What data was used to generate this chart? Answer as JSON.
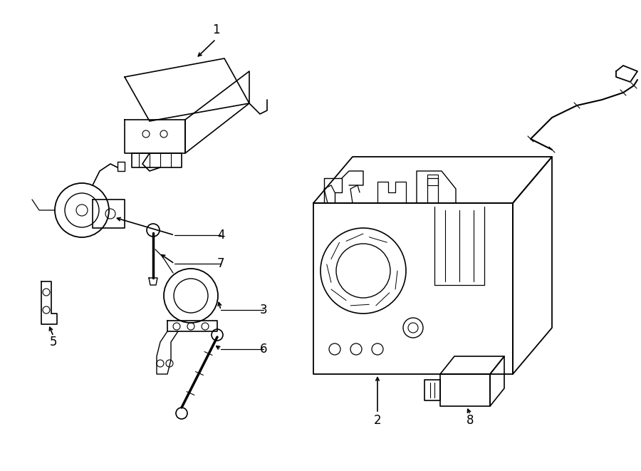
{
  "background_color": "#ffffff",
  "line_color": "#000000",
  "lw": 1.0,
  "fig_width": 9.0,
  "fig_height": 6.61,
  "dpi": 100,
  "xlim": [
    0,
    900
  ],
  "ylim": [
    0,
    661
  ]
}
